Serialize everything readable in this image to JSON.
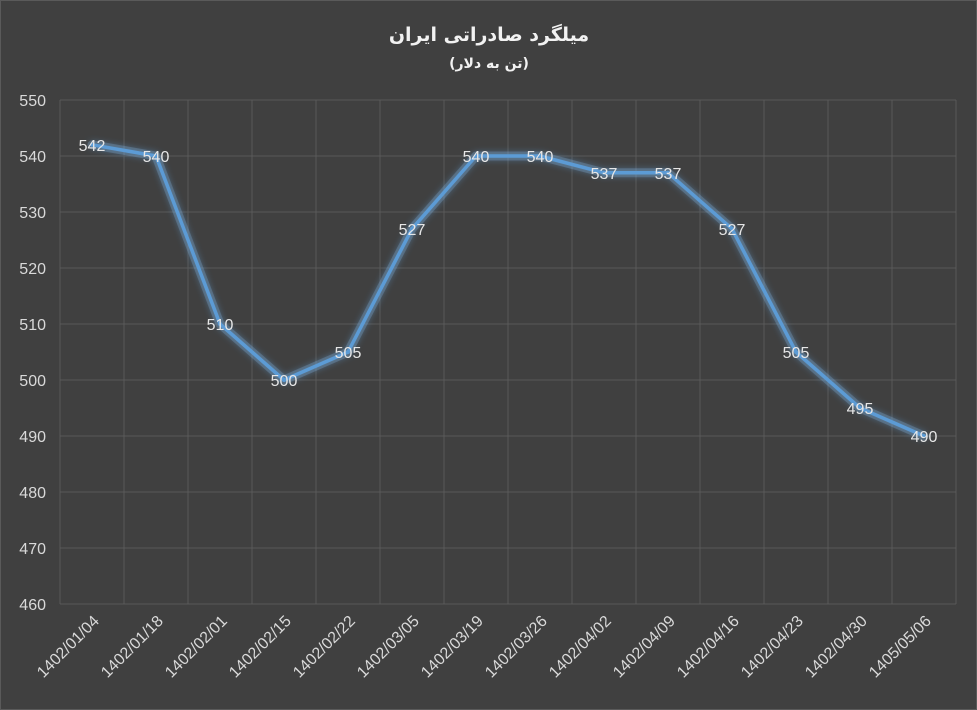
{
  "chart_data": {
    "type": "line",
    "title": "میلگرد صادراتی ایران",
    "subtitle": "(تن به دلار)",
    "xlabel": "",
    "ylabel": "",
    "categories": [
      "1402/01/04",
      "1402/01/18",
      "1402/02/01",
      "1402/02/15",
      "1402/02/22",
      "1402/03/05",
      "1402/03/19",
      "1402/03/26",
      "1402/04/02",
      "1402/04/09",
      "1402/04/16",
      "1402/04/23",
      "1402/04/30",
      "1405/05/06"
    ],
    "series": [
      {
        "values": [
          542,
          540,
          510,
          500,
          505,
          527,
          540,
          540,
          537,
          537,
          527,
          505,
          495,
          490
        ]
      }
    ],
    "ylim": [
      460,
      550
    ],
    "yticks": [
      460,
      470,
      480,
      490,
      500,
      510,
      520,
      530,
      540,
      550
    ],
    "grid": true,
    "data_labels": true,
    "colors": {
      "background": "#404040",
      "line": "#5b9bd5",
      "glow": "#9dc3e6",
      "grid": "#595959",
      "text": "#d9d9d9"
    }
  }
}
